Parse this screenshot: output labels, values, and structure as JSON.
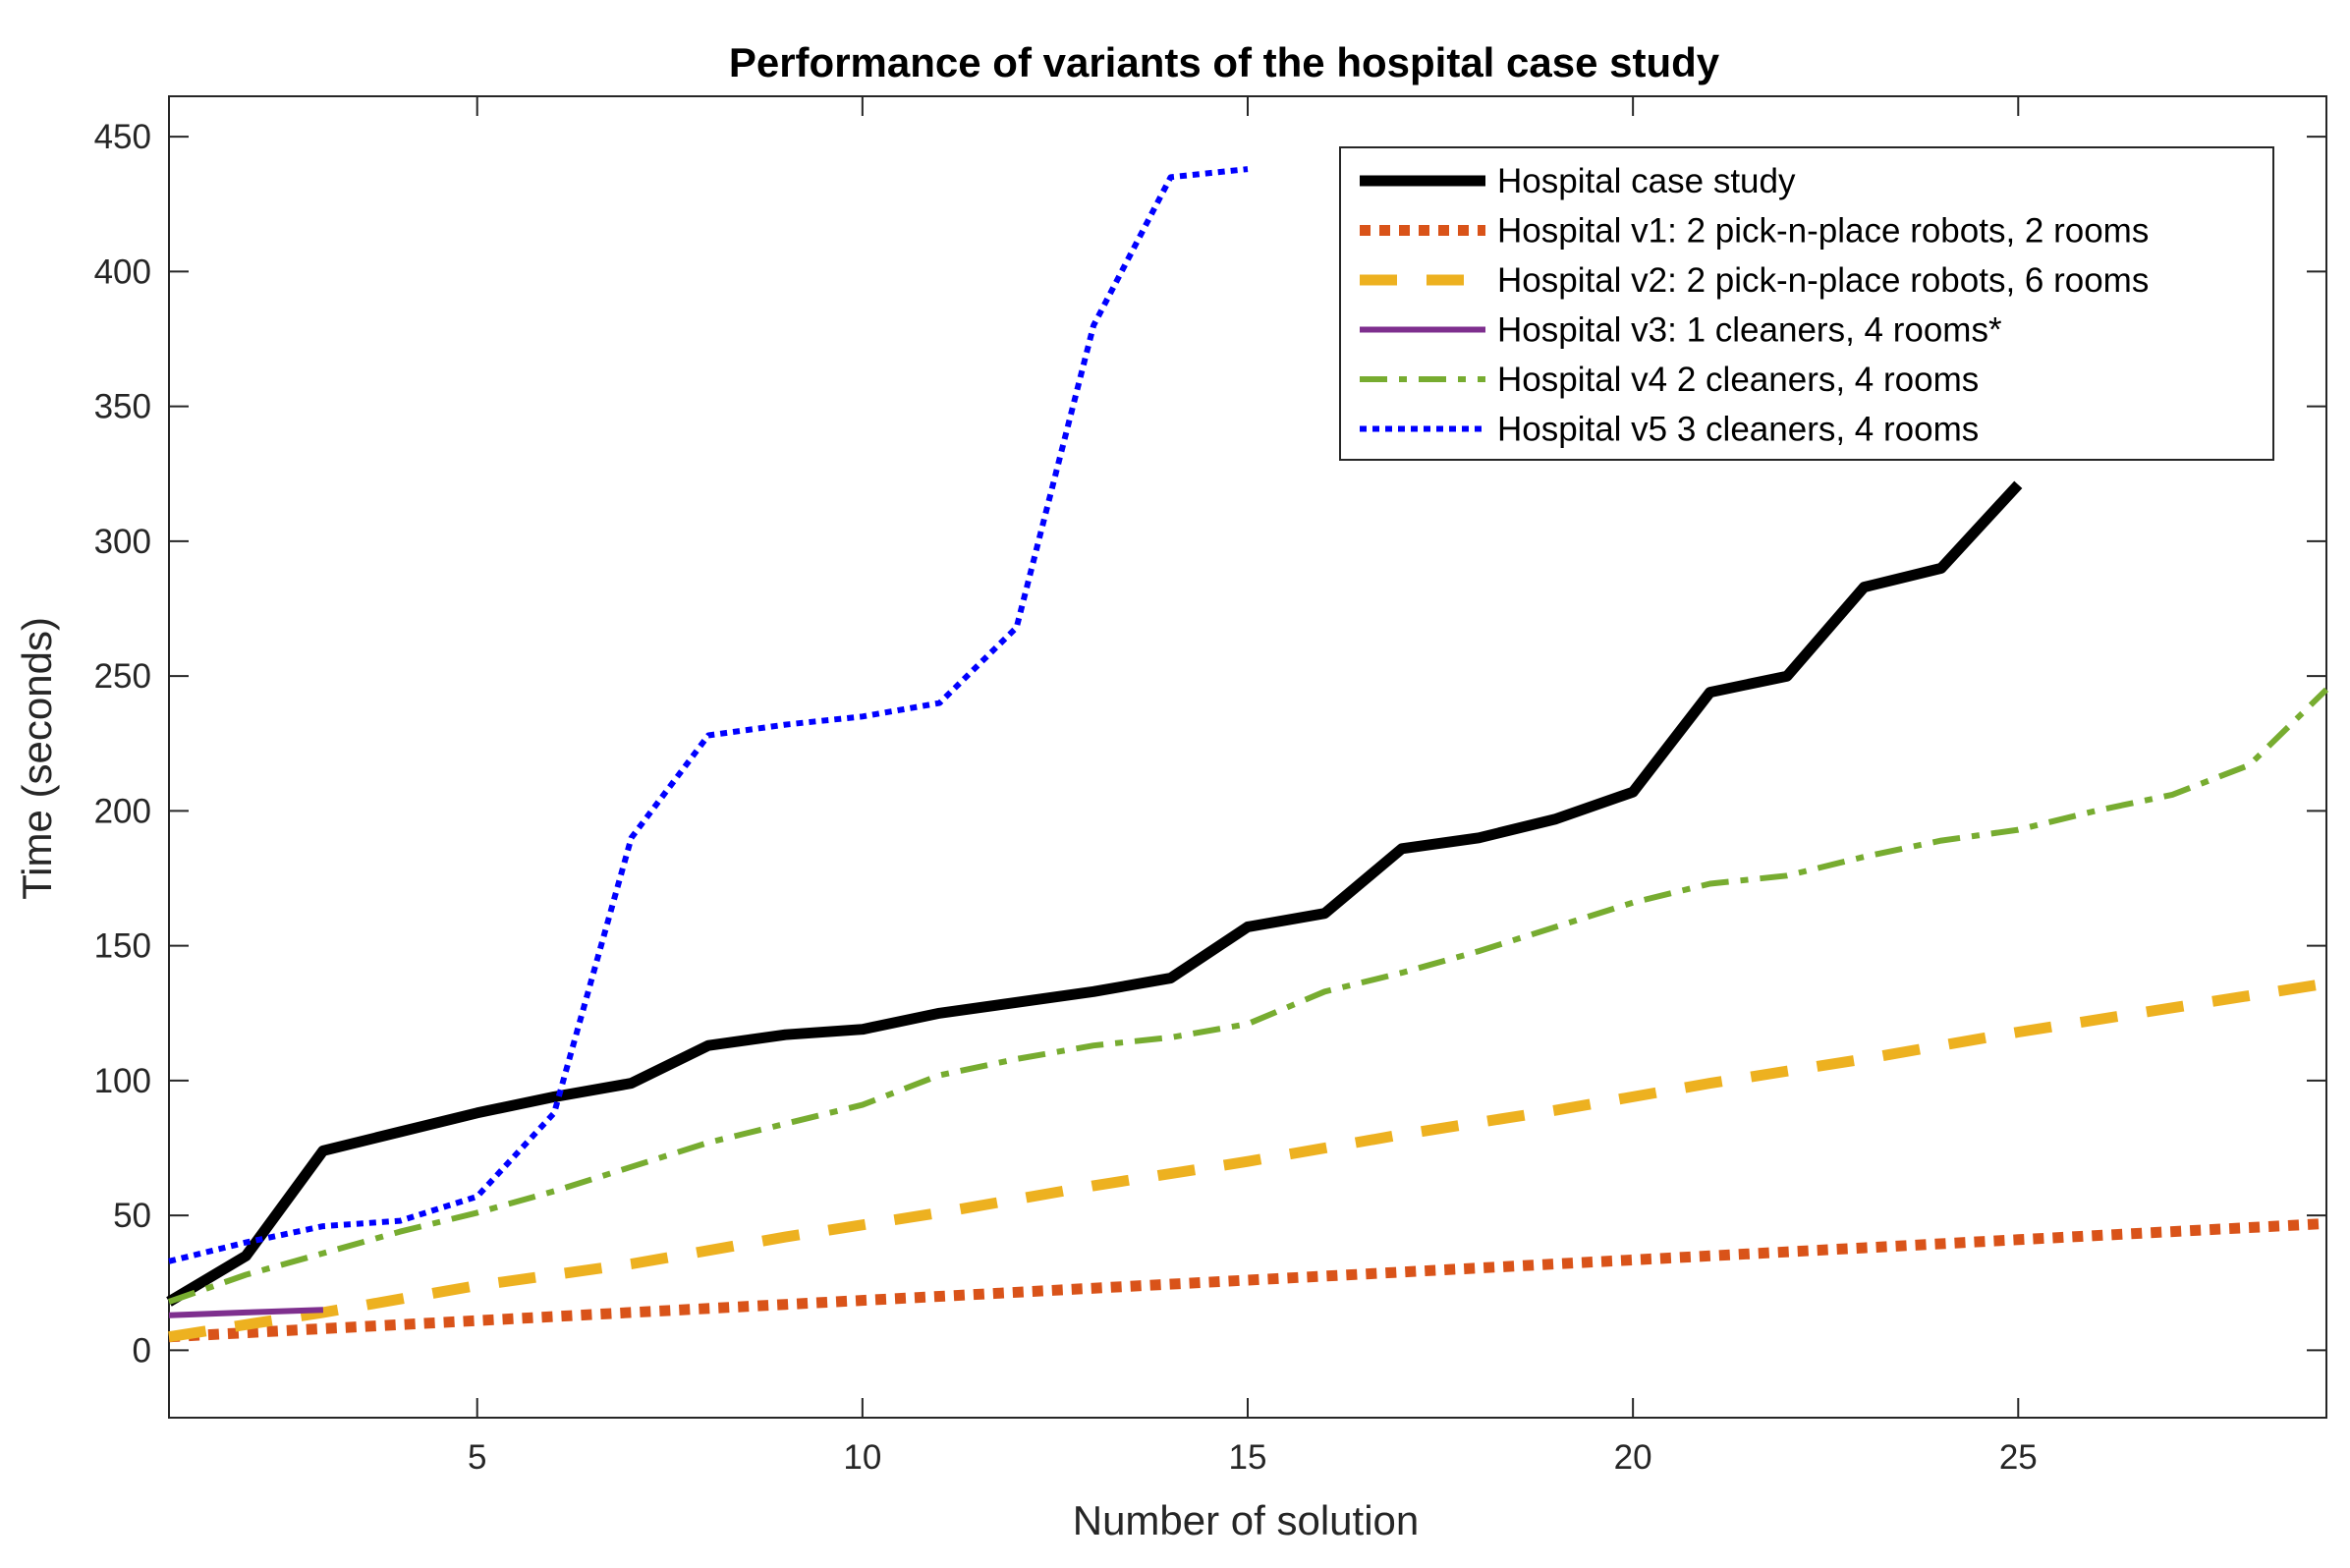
{
  "chart_data": {
    "type": "line",
    "title": "Performance of variants of the hospital case study",
    "xlabel": "Number of solution",
    "ylabel": "Time (seconds)",
    "xlim": [
      1,
      29
    ],
    "ylim": [
      -25,
      465
    ],
    "xticks": [
      5,
      10,
      15,
      20,
      25
    ],
    "yticks": [
      0,
      50,
      100,
      150,
      200,
      250,
      300,
      350,
      400,
      450
    ],
    "grid": false,
    "legend_position": "top-right",
    "series": [
      {
        "name": "Hospital case study",
        "color": "#000000",
        "style": "solid-thick",
        "x": [
          1,
          2,
          3,
          4,
          5,
          6,
          7,
          8,
          9,
          10,
          11,
          12,
          13,
          14,
          15,
          16,
          17,
          18,
          19,
          20,
          21,
          22,
          23,
          24,
          25
        ],
        "y": [
          18,
          35,
          74,
          81,
          88,
          94,
          99,
          113,
          117,
          119,
          125,
          129,
          133,
          138,
          157,
          162,
          186,
          190,
          197,
          207,
          244,
          250,
          283,
          290,
          321
        ]
      },
      {
        "name": "Hospital v1: 2 pick-n-place robots, 2 rooms",
        "color": "#D95319",
        "style": "dotted-thick",
        "x": [
          1,
          3,
          5,
          7,
          9,
          11,
          13,
          15,
          17,
          19,
          21,
          23,
          25,
          27,
          29
        ],
        "y": [
          5,
          8,
          11,
          14,
          17,
          20,
          23,
          26,
          29,
          32,
          35,
          38,
          41,
          44,
          47
        ]
      },
      {
        "name": "Hospital v2: 2 pick-n-place robots, 6 rooms",
        "color": "#EDB120",
        "style": "dashed-thick",
        "x": [
          1,
          3,
          5,
          7,
          9,
          11,
          13,
          15,
          17,
          19,
          21,
          23,
          25,
          27,
          29
        ],
        "y": [
          5,
          14,
          24,
          32,
          42,
          51,
          61,
          70,
          80,
          89,
          99,
          108,
          118,
          127,
          136
        ]
      },
      {
        "name": "Hospital v3: 1 cleaners, 4 rooms*",
        "color": "#7E2F8E",
        "style": "solid",
        "x": [
          1,
          2,
          3
        ],
        "y": [
          13,
          14,
          15
        ]
      },
      {
        "name": "Hospital v4 2 cleaners, 4 rooms",
        "color": "#77AC30",
        "style": "dashdot",
        "x": [
          1,
          2,
          3,
          4,
          5,
          6,
          7,
          8,
          9,
          10,
          11,
          12,
          13,
          14,
          15,
          16,
          17,
          18,
          19,
          20,
          21,
          22,
          23,
          24,
          25,
          26,
          27,
          28,
          29
        ],
        "y": [
          18,
          28,
          36,
          44,
          51,
          59,
          68,
          77,
          84,
          91,
          102,
          108,
          113,
          116,
          121,
          133,
          140,
          148,
          157,
          166,
          173,
          176,
          183,
          189,
          193,
          200,
          206,
          217,
          245
        ]
      },
      {
        "name": "Hospital v5 3 cleaners, 4 rooms",
        "color": "#0000FF",
        "style": "dotted",
        "x": [
          1,
          2,
          3,
          4,
          5,
          6,
          7,
          8,
          9,
          10,
          11,
          12,
          13,
          14,
          15
        ],
        "y": [
          33,
          40,
          46,
          48,
          57,
          88,
          190,
          228,
          232,
          235,
          240,
          268,
          380,
          435,
          438
        ]
      }
    ]
  }
}
